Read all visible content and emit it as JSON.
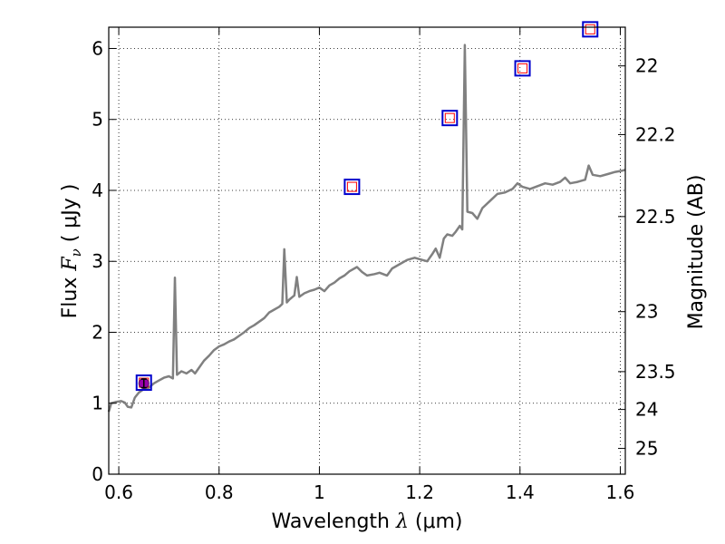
{
  "chart_data": {
    "type": "line",
    "xlabel": {
      "prefix": "Wavelength  ",
      "symbol": "λ",
      "unit": " (μm)"
    },
    "ylabel": {
      "prefix": "Flux  ",
      "symbol": "F",
      "subscript": "ν",
      "unit": "  ( μJy )"
    },
    "y2label": "Magnitude (AB)",
    "xlim": [
      0.58,
      1.61
    ],
    "ylim": [
      0,
      6.3
    ],
    "x_ticks": [
      0.6,
      0.8,
      1.0,
      1.2,
      1.4,
      1.6
    ],
    "x_tick_labels": [
      "0.6",
      "0.8",
      "1",
      "1.2",
      "1.4",
      "1.6"
    ],
    "y_ticks": [
      0,
      1,
      2,
      3,
      4,
      5,
      6
    ],
    "y_tick_labels": [
      "0",
      "1",
      "2",
      "3",
      "4",
      "5",
      "6"
    ],
    "y2_ticks": [
      22,
      22.2,
      22.5,
      23,
      23.5,
      24,
      25
    ],
    "y2_tick_labels": [
      "22",
      "22.2",
      "22.5",
      "23",
      "23.5",
      "24",
      "25"
    ],
    "grid": true,
    "colors": {
      "spectrum": "#808080",
      "model_box": "#0000cc",
      "observed_box": "#ff0000",
      "measured_point": "#9900aa"
    },
    "series": [
      {
        "kind": "spectrum",
        "points": [
          [
            0.58,
            0.88
          ],
          [
            0.585,
            1.0
          ],
          [
            0.595,
            1.02
          ],
          [
            0.605,
            1.03
          ],
          [
            0.612,
            1.01
          ],
          [
            0.618,
            0.95
          ],
          [
            0.625,
            0.94
          ],
          [
            0.632,
            1.08
          ],
          [
            0.64,
            1.15
          ],
          [
            0.65,
            1.2
          ],
          [
            0.66,
            1.22
          ],
          [
            0.67,
            1.28
          ],
          [
            0.68,
            1.32
          ],
          [
            0.69,
            1.36
          ],
          [
            0.7,
            1.38
          ],
          [
            0.708,
            1.35
          ],
          [
            0.712,
            2.77
          ],
          [
            0.716,
            1.4
          ],
          [
            0.725,
            1.45
          ],
          [
            0.735,
            1.42
          ],
          [
            0.745,
            1.47
          ],
          [
            0.752,
            1.42
          ],
          [
            0.76,
            1.5
          ],
          [
            0.77,
            1.6
          ],
          [
            0.78,
            1.67
          ],
          [
            0.79,
            1.75
          ],
          [
            0.8,
            1.8
          ],
          [
            0.81,
            1.83
          ],
          [
            0.82,
            1.87
          ],
          [
            0.83,
            1.9
          ],
          [
            0.84,
            1.95
          ],
          [
            0.85,
            2.0
          ],
          [
            0.86,
            2.06
          ],
          [
            0.87,
            2.1
          ],
          [
            0.88,
            2.15
          ],
          [
            0.89,
            2.2
          ],
          [
            0.9,
            2.28
          ],
          [
            0.91,
            2.32
          ],
          [
            0.92,
            2.36
          ],
          [
            0.926,
            2.4
          ],
          [
            0.93,
            3.17
          ],
          [
            0.935,
            2.42
          ],
          [
            0.94,
            2.46
          ],
          [
            0.95,
            2.52
          ],
          [
            0.955,
            2.78
          ],
          [
            0.96,
            2.5
          ],
          [
            0.97,
            2.55
          ],
          [
            0.98,
            2.58
          ],
          [
            0.99,
            2.6
          ],
          [
            1.0,
            2.63
          ],
          [
            1.01,
            2.58
          ],
          [
            1.02,
            2.66
          ],
          [
            1.03,
            2.7
          ],
          [
            1.04,
            2.76
          ],
          [
            1.05,
            2.8
          ],
          [
            1.06,
            2.86
          ],
          [
            1.075,
            2.92
          ],
          [
            1.085,
            2.85
          ],
          [
            1.095,
            2.8
          ],
          [
            1.11,
            2.82
          ],
          [
            1.12,
            2.84
          ],
          [
            1.135,
            2.8
          ],
          [
            1.145,
            2.9
          ],
          [
            1.16,
            2.96
          ],
          [
            1.175,
            3.02
          ],
          [
            1.19,
            3.05
          ],
          [
            1.205,
            3.02
          ],
          [
            1.215,
            3.0
          ],
          [
            1.225,
            3.1
          ],
          [
            1.232,
            3.18
          ],
          [
            1.24,
            3.05
          ],
          [
            1.248,
            3.32
          ],
          [
            1.255,
            3.38
          ],
          [
            1.265,
            3.36
          ],
          [
            1.272,
            3.42
          ],
          [
            1.28,
            3.5
          ],
          [
            1.285,
            3.45
          ],
          [
            1.29,
            6.05
          ],
          [
            1.295,
            3.7
          ],
          [
            1.305,
            3.68
          ],
          [
            1.315,
            3.6
          ],
          [
            1.325,
            3.75
          ],
          [
            1.34,
            3.85
          ],
          [
            1.355,
            3.95
          ],
          [
            1.37,
            3.97
          ],
          [
            1.385,
            4.02
          ],
          [
            1.395,
            4.1
          ],
          [
            1.405,
            4.05
          ],
          [
            1.42,
            4.02
          ],
          [
            1.435,
            4.06
          ],
          [
            1.45,
            4.1
          ],
          [
            1.465,
            4.08
          ],
          [
            1.48,
            4.12
          ],
          [
            1.49,
            4.18
          ],
          [
            1.5,
            4.1
          ],
          [
            1.515,
            4.12
          ],
          [
            1.53,
            4.15
          ],
          [
            1.537,
            4.35
          ],
          [
            1.545,
            4.22
          ],
          [
            1.56,
            4.2
          ],
          [
            1.575,
            4.23
          ],
          [
            1.59,
            4.26
          ],
          [
            1.605,
            4.28
          ],
          [
            1.61,
            4.29
          ]
        ]
      },
      {
        "kind": "photometry",
        "points": [
          [
            0.65,
            1.29
          ],
          [
            1.065,
            4.05
          ],
          [
            1.26,
            5.02
          ],
          [
            1.405,
            5.72
          ],
          [
            1.54,
            6.27
          ]
        ]
      },
      {
        "kind": "measured",
        "points": [
          [
            0.65,
            1.28
          ]
        ],
        "yerr": 0.06
      }
    ]
  }
}
